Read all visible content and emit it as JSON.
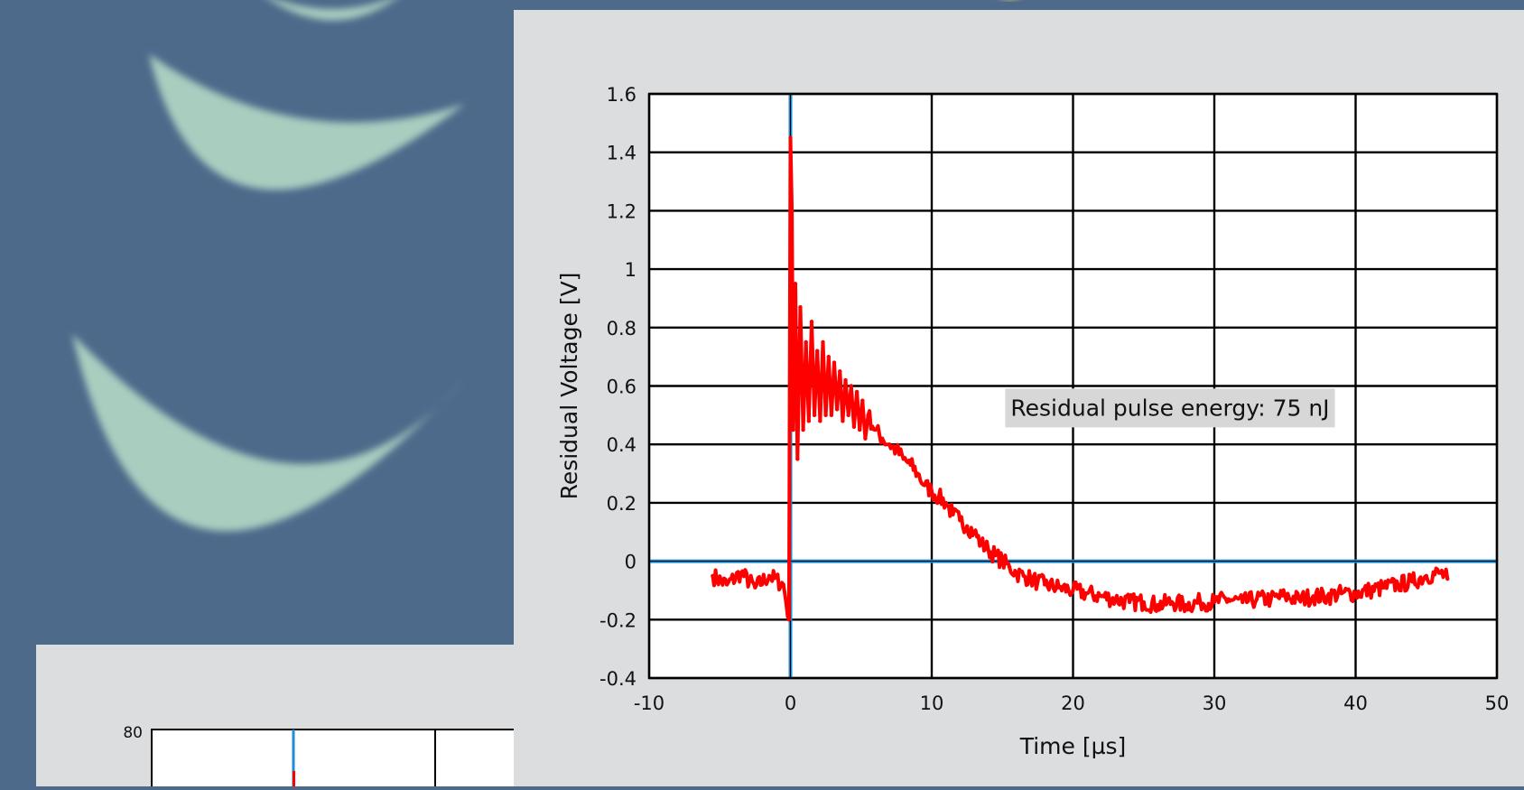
{
  "colors": {
    "background": "#4d6a8b",
    "crescent": "#a9cdbf",
    "panel": "#dcdddf",
    "trace": "#ff0000",
    "zero_line": "#1e8fd6",
    "grid": "#000000",
    "annotation_box": "#d7d7d7"
  },
  "chart_data": {
    "type": "line",
    "xlabel": "Time [µs]",
    "ylabel": "Residual Voltage [V]",
    "xlim": [
      -10,
      50
    ],
    "ylim": [
      -0.4,
      1.6
    ],
    "x_ticks": [
      "-10",
      "0",
      "10",
      "20",
      "30",
      "40",
      "50"
    ],
    "y_ticks": [
      "-0.4",
      "-0.2",
      "0",
      "0.2",
      "0.4",
      "0.6",
      "0.8",
      "1",
      "1.2",
      "1.4",
      "1.6"
    ],
    "grid": true,
    "annotation": "Residual pulse energy: 75 nJ",
    "series": [
      {
        "x": [
          -5.5,
          -4.5,
          -3.5,
          -2.5,
          -1.5,
          -0.5,
          -0.1,
          0.0,
          0.1,
          0.2,
          0.35,
          0.5,
          0.7,
          0.9,
          1.1,
          1.3,
          1.5,
          1.7,
          1.9,
          2.1,
          2.3,
          2.5,
          2.7,
          2.9,
          3.1,
          3.3,
          3.5,
          3.7,
          3.9,
          4.1,
          4.3,
          4.5,
          4.7,
          4.9,
          5.1,
          5.3,
          5.5,
          6.0,
          6.5,
          7.0,
          7.5,
          8.0,
          8.5,
          9.0,
          9.5,
          10.0,
          10.5,
          11.0,
          11.5,
          12.0,
          12.5,
          13.0,
          13.5,
          14.0,
          14.5,
          15.0,
          15.5,
          16.0,
          16.5,
          17.0,
          17.5,
          18.0,
          19.0,
          20.0,
          21.0,
          22.0,
          23.0,
          24.0,
          25.0,
          26.0,
          27.0,
          28.0,
          29.0,
          30.0,
          31.0,
          32.0,
          33.0,
          34.0,
          35.0,
          36.0,
          37.0,
          38.0,
          39.0,
          40.0,
          41.0,
          42.0,
          43.0,
          44.0,
          45.0,
          46.0,
          46.5
        ],
        "y": [
          -0.05,
          -0.08,
          -0.04,
          -0.09,
          -0.05,
          -0.08,
          -0.2,
          1.45,
          1.2,
          0.45,
          0.95,
          0.35,
          0.87,
          0.45,
          0.75,
          0.48,
          0.82,
          0.5,
          0.72,
          0.48,
          0.75,
          0.5,
          0.7,
          0.5,
          0.68,
          0.52,
          0.65,
          0.48,
          0.62,
          0.5,
          0.6,
          0.46,
          0.58,
          0.45,
          0.55,
          0.42,
          0.5,
          0.45,
          0.42,
          0.4,
          0.38,
          0.35,
          0.33,
          0.3,
          0.26,
          0.24,
          0.22,
          0.2,
          0.16,
          0.14,
          0.12,
          0.1,
          0.06,
          0.04,
          0.02,
          0.0,
          -0.02,
          -0.04,
          -0.05,
          -0.06,
          -0.07,
          -0.08,
          -0.09,
          -0.1,
          -0.11,
          -0.12,
          -0.13,
          -0.14,
          -0.14,
          -0.15,
          -0.14,
          -0.15,
          -0.14,
          -0.14,
          -0.13,
          -0.14,
          -0.13,
          -0.13,
          -0.12,
          -0.13,
          -0.12,
          -0.12,
          -0.11,
          -0.11,
          -0.1,
          -0.09,
          -0.08,
          -0.07,
          -0.05,
          -0.04,
          -0.06
        ]
      }
    ]
  },
  "background_chart": {
    "tick_label": "80"
  }
}
